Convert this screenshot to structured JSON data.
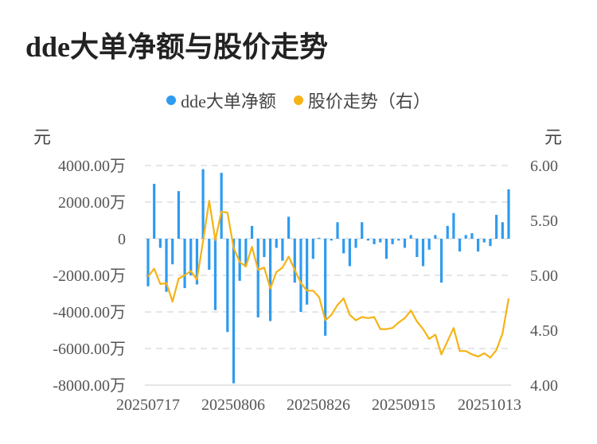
{
  "title": "dde大单净额与股价走势",
  "legend": [
    {
      "label": "dde大单净额",
      "color": "#2E9BF0"
    },
    {
      "label": "股价走势（右）",
      "color": "#F5B316"
    }
  ],
  "axes": {
    "left_unit": "元",
    "right_unit": "元",
    "left_ticks": [
      "4000.00万",
      "2000.00万",
      "0",
      "-2000.00万",
      "-4000.00万",
      "-6000.00万",
      "-8000.00万"
    ],
    "right_ticks": [
      "6.00",
      "5.50",
      "5.00",
      "4.50",
      "4.00"
    ],
    "x_ticks": [
      "20250717",
      "20250806",
      "20250826",
      "20250915",
      "20251013"
    ]
  },
  "chart_data": {
    "type": "bar+line",
    "title": "dde大单净额与股价走势",
    "xlabel": "",
    "ylabel": "元",
    "ylabel_right": "元",
    "ylim": [
      -8000,
      4000
    ],
    "ylim_right": [
      4.0,
      6.0
    ],
    "y_unit": "万元",
    "grid": true,
    "legend_position": "top",
    "x_tick_labels": [
      "20250717",
      "20250806",
      "20250826",
      "20250915",
      "20251013"
    ],
    "series": [
      {
        "name": "dde大单净额",
        "type": "bar",
        "axis": "left",
        "color": "#2E9BF0",
        "values": [
          -2600,
          3000,
          -500,
          -2900,
          -1400,
          2600,
          -2700,
          -2000,
          -2500,
          3800,
          -1700,
          -3900,
          3600,
          -5100,
          -7900,
          -2300,
          -1500,
          700,
          -4300,
          -1000,
          -4500,
          -500,
          -1200,
          1200,
          -2400,
          -4000,
          -3600,
          -1100,
          50,
          -5300,
          -100,
          900,
          -800,
          -1500,
          -500,
          900,
          -100,
          -300,
          -200,
          -1100,
          -300,
          -100,
          -500,
          200,
          -1000,
          -1500,
          -600,
          200,
          -2400,
          700,
          1400,
          -700,
          200,
          300,
          -700,
          -200,
          -400,
          1300,
          900,
          2700
        ]
      },
      {
        "name": "股价走势（右）",
        "type": "line",
        "axis": "right",
        "color": "#F5B316",
        "values": [
          4.99,
          5.06,
          4.92,
          4.93,
          4.76,
          4.97,
          5.0,
          5.04,
          4.96,
          5.31,
          5.68,
          5.32,
          5.58,
          5.57,
          5.25,
          5.12,
          5.08,
          5.26,
          5.05,
          5.07,
          4.88,
          5.03,
          5.07,
          5.17,
          5.05,
          4.93,
          4.86,
          4.86,
          4.8,
          4.59,
          4.64,
          4.73,
          4.79,
          4.64,
          4.59,
          4.62,
          4.61,
          4.62,
          4.51,
          4.51,
          4.52,
          4.57,
          4.61,
          4.68,
          4.58,
          4.51,
          4.42,
          4.46,
          4.28,
          4.4,
          4.52,
          4.31,
          4.31,
          4.28,
          4.26,
          4.29,
          4.25,
          4.32,
          4.47,
          4.79
        ]
      }
    ]
  }
}
